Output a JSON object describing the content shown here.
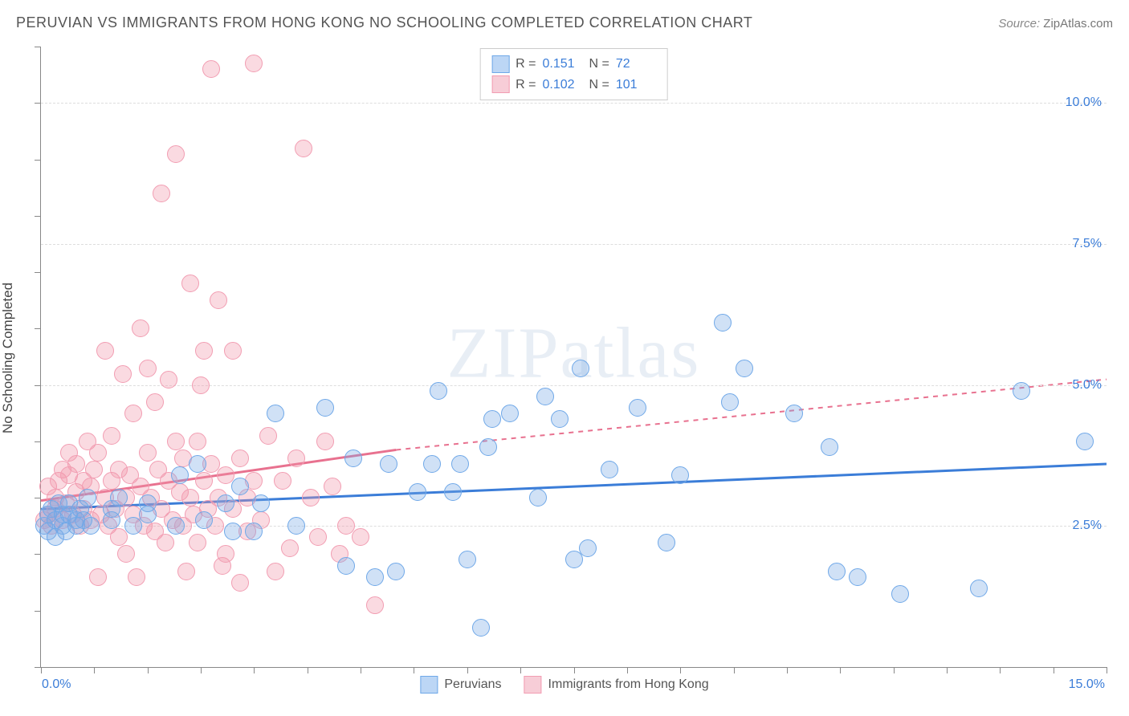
{
  "title": "PERUVIAN VS IMMIGRANTS FROM HONG KONG NO SCHOOLING COMPLETED CORRELATION CHART",
  "source_label": "Source:",
  "source_value": "ZipAtlas.com",
  "ylabel": "No Schooling Completed",
  "watermark": "ZIPatlas",
  "chart": {
    "type": "scatter",
    "xlim": [
      0,
      15
    ],
    "ylim": [
      0,
      11
    ],
    "x_tick_left": "0.0%",
    "x_tick_right": "15.0%",
    "y_ticks": [
      {
        "v": 2.5,
        "label": "2.5%"
      },
      {
        "v": 5.0,
        "label": "5.0%"
      },
      {
        "v": 7.5,
        "label": "7.5%"
      },
      {
        "v": 10.0,
        "label": "10.0%"
      }
    ],
    "x_minor_ticks": [
      0,
      0.75,
      1.5,
      2.25,
      3,
      3.75,
      4.5,
      5.25,
      6,
      6.75,
      7.5,
      8.25,
      9,
      9.75,
      10.5,
      11.25,
      12,
      12.75,
      13.5,
      14.25,
      15
    ],
    "y_minor_ticks": [
      0,
      1,
      2,
      3,
      4,
      5,
      6,
      7,
      8,
      9,
      10,
      11
    ],
    "background_color": "#ffffff",
    "grid_color": "#dddddd",
    "axis_color": "#888888",
    "marker_radius": 11,
    "marker_stroke_width": 1,
    "series": [
      {
        "name": "Peruvians",
        "fill": "rgba(120,170,230,0.35)",
        "stroke": "#6fa8e8",
        "swatch_fill": "#bcd6f5",
        "swatch_stroke": "#6fa8e8",
        "R": "0.151",
        "N": "72",
        "trend": {
          "x1": 0,
          "y1": 2.8,
          "x2": 15,
          "y2": 3.6,
          "color": "#3b7dd8",
          "width": 3,
          "dash": "none"
        },
        "points": [
          [
            0.05,
            2.5
          ],
          [
            0.1,
            2.7
          ],
          [
            0.1,
            2.4
          ],
          [
            0.15,
            2.8
          ],
          [
            0.2,
            2.6
          ],
          [
            0.2,
            2.3
          ],
          [
            0.25,
            2.9
          ],
          [
            0.3,
            2.7
          ],
          [
            0.3,
            2.5
          ],
          [
            0.35,
            2.4
          ],
          [
            0.4,
            2.7
          ],
          [
            0.4,
            2.9
          ],
          [
            0.5,
            2.6
          ],
          [
            0.5,
            2.5
          ],
          [
            0.55,
            2.8
          ],
          [
            0.6,
            2.6
          ],
          [
            0.65,
            3.0
          ],
          [
            0.7,
            2.5
          ],
          [
            1.0,
            2.6
          ],
          [
            1.0,
            2.8
          ],
          [
            1.1,
            3.0
          ],
          [
            1.3,
            2.5
          ],
          [
            1.5,
            2.9
          ],
          [
            1.5,
            2.7
          ],
          [
            1.9,
            2.5
          ],
          [
            1.95,
            3.4
          ],
          [
            2.2,
            3.6
          ],
          [
            2.3,
            2.6
          ],
          [
            2.6,
            2.9
          ],
          [
            2.7,
            2.4
          ],
          [
            2.8,
            3.2
          ],
          [
            3.0,
            2.4
          ],
          [
            3.1,
            2.9
          ],
          [
            3.3,
            4.5
          ],
          [
            3.6,
            2.5
          ],
          [
            4.0,
            4.6
          ],
          [
            4.3,
            1.8
          ],
          [
            4.4,
            3.7
          ],
          [
            4.7,
            1.6
          ],
          [
            4.9,
            3.6
          ],
          [
            5.0,
            1.7
          ],
          [
            5.3,
            3.1
          ],
          [
            5.5,
            3.6
          ],
          [
            5.6,
            4.9
          ],
          [
            5.8,
            3.1
          ],
          [
            5.9,
            3.6
          ],
          [
            6.0,
            1.9
          ],
          [
            6.2,
            0.7
          ],
          [
            6.3,
            3.9
          ],
          [
            6.35,
            4.4
          ],
          [
            6.6,
            4.5
          ],
          [
            7.0,
            3.0
          ],
          [
            7.1,
            4.8
          ],
          [
            7.3,
            4.4
          ],
          [
            7.5,
            1.9
          ],
          [
            7.6,
            5.3
          ],
          [
            7.7,
            2.1
          ],
          [
            8.0,
            3.5
          ],
          [
            8.4,
            4.6
          ],
          [
            8.8,
            2.2
          ],
          [
            9.0,
            3.4
          ],
          [
            9.6,
            6.1
          ],
          [
            9.7,
            4.7
          ],
          [
            9.9,
            5.3
          ],
          [
            10.6,
            4.5
          ],
          [
            11.1,
            3.9
          ],
          [
            11.2,
            1.7
          ],
          [
            11.5,
            1.6
          ],
          [
            12.1,
            1.3
          ],
          [
            13.2,
            1.4
          ],
          [
            13.8,
            4.9
          ],
          [
            14.7,
            4.0
          ]
        ]
      },
      {
        "name": "Immigrants from Hong Kong",
        "fill": "rgba(240,150,170,0.35)",
        "stroke": "#f29db2",
        "swatch_fill": "#f7cdd7",
        "swatch_stroke": "#f29db2",
        "R": "0.102",
        "N": "101",
        "trend": {
          "x1": 0,
          "y1": 2.95,
          "x2": 5,
          "y2": 3.85,
          "color": "#e8718f",
          "width": 3,
          "dash": "none",
          "extend_to": 15,
          "extend_y": 5.1,
          "extend_dash": "6,6"
        },
        "points": [
          [
            0.05,
            2.6
          ],
          [
            0.1,
            2.7
          ],
          [
            0.1,
            3.2
          ],
          [
            0.15,
            2.5
          ],
          [
            0.2,
            2.8
          ],
          [
            0.2,
            3.0
          ],
          [
            0.25,
            3.3
          ],
          [
            0.3,
            2.6
          ],
          [
            0.3,
            3.5
          ],
          [
            0.35,
            2.9
          ],
          [
            0.4,
            3.4
          ],
          [
            0.4,
            3.8
          ],
          [
            0.45,
            2.7
          ],
          [
            0.5,
            3.1
          ],
          [
            0.5,
            3.6
          ],
          [
            0.55,
            2.5
          ],
          [
            0.6,
            3.3
          ],
          [
            0.6,
            2.8
          ],
          [
            0.65,
            4.0
          ],
          [
            0.7,
            3.2
          ],
          [
            0.7,
            2.6
          ],
          [
            0.75,
            3.5
          ],
          [
            0.8,
            3.8
          ],
          [
            0.8,
            1.6
          ],
          [
            0.85,
            2.7
          ],
          [
            0.9,
            5.6
          ],
          [
            0.9,
            3.0
          ],
          [
            0.95,
            2.5
          ],
          [
            1.0,
            4.1
          ],
          [
            1.0,
            3.3
          ],
          [
            1.05,
            2.8
          ],
          [
            1.1,
            3.5
          ],
          [
            1.1,
            2.3
          ],
          [
            1.15,
            5.2
          ],
          [
            1.2,
            3.0
          ],
          [
            1.2,
            2.0
          ],
          [
            1.25,
            3.4
          ],
          [
            1.3,
            4.5
          ],
          [
            1.3,
            2.7
          ],
          [
            1.35,
            1.6
          ],
          [
            1.4,
            3.2
          ],
          [
            1.4,
            6.0
          ],
          [
            1.45,
            2.5
          ],
          [
            1.5,
            3.8
          ],
          [
            1.5,
            5.3
          ],
          [
            1.55,
            3.0
          ],
          [
            1.6,
            4.7
          ],
          [
            1.6,
            2.4
          ],
          [
            1.65,
            3.5
          ],
          [
            1.7,
            8.4
          ],
          [
            1.7,
            2.8
          ],
          [
            1.75,
            2.2
          ],
          [
            1.8,
            5.1
          ],
          [
            1.8,
            3.3
          ],
          [
            1.85,
            2.6
          ],
          [
            1.9,
            4.0
          ],
          [
            1.9,
            9.1
          ],
          [
            1.95,
            3.1
          ],
          [
            2.0,
            2.5
          ],
          [
            2.0,
            3.7
          ],
          [
            2.05,
            1.7
          ],
          [
            2.1,
            6.8
          ],
          [
            2.1,
            3.0
          ],
          [
            2.15,
            2.7
          ],
          [
            2.2,
            4.0
          ],
          [
            2.2,
            2.2
          ],
          [
            2.25,
            5.0
          ],
          [
            2.3,
            3.3
          ],
          [
            2.3,
            5.6
          ],
          [
            2.35,
            2.8
          ],
          [
            2.4,
            3.6
          ],
          [
            2.4,
            10.6
          ],
          [
            2.45,
            2.5
          ],
          [
            2.5,
            6.5
          ],
          [
            2.5,
            3.0
          ],
          [
            2.55,
            1.8
          ],
          [
            2.6,
            3.4
          ],
          [
            2.6,
            2.0
          ],
          [
            2.7,
            5.6
          ],
          [
            2.7,
            2.8
          ],
          [
            2.8,
            3.7
          ],
          [
            2.8,
            1.5
          ],
          [
            2.9,
            3.0
          ],
          [
            2.9,
            2.4
          ],
          [
            3.0,
            3.3
          ],
          [
            3.0,
            10.7
          ],
          [
            3.1,
            2.6
          ],
          [
            3.2,
            4.1
          ],
          [
            3.3,
            1.7
          ],
          [
            3.4,
            3.3
          ],
          [
            3.5,
            2.1
          ],
          [
            3.6,
            3.7
          ],
          [
            3.7,
            9.2
          ],
          [
            3.8,
            3.0
          ],
          [
            3.9,
            2.3
          ],
          [
            4.0,
            4.0
          ],
          [
            4.1,
            3.2
          ],
          [
            4.2,
            2.0
          ],
          [
            4.3,
            2.5
          ],
          [
            4.5,
            2.3
          ],
          [
            4.7,
            1.1
          ]
        ]
      }
    ],
    "bottom_legend": [
      {
        "swatch_fill": "#bcd6f5",
        "swatch_stroke": "#6fa8e8",
        "label": "Peruvians"
      },
      {
        "swatch_fill": "#f7cdd7",
        "swatch_stroke": "#f29db2",
        "label": "Immigrants from Hong Kong"
      }
    ]
  }
}
